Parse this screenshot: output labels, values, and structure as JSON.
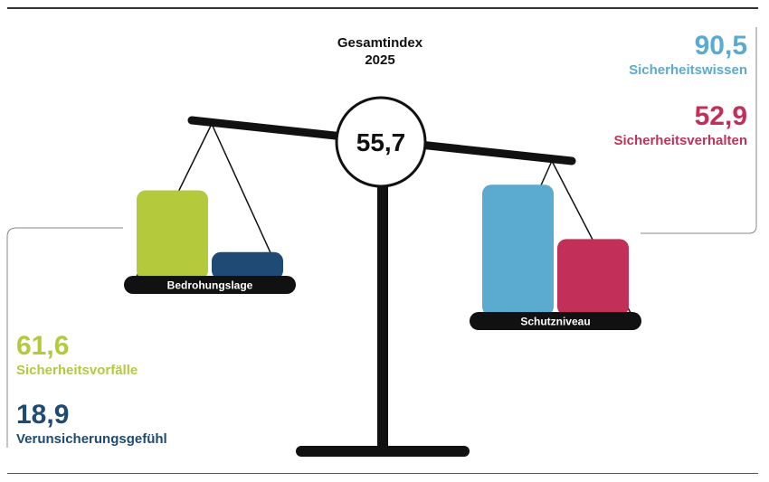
{
  "title": {
    "line1": "Gesamtindex",
    "line2": "2025"
  },
  "colors": {
    "green": "#b5c93d",
    "navy": "#1e4a73",
    "blue": "#5aabcf",
    "crimson": "#c2305a",
    "black": "#111111"
  },
  "chart_data": {
    "type": "bar",
    "center_value": "55,7",
    "groups": [
      {
        "name": "Bedrohungslage",
        "series": [
          {
            "name": "Sicherheitsvorfälle",
            "value": 61.6,
            "display": "61,6",
            "color": "#b5c93d"
          },
          {
            "name": "Verunsicherungsgefühl",
            "value": 18.9,
            "display": "18,9",
            "color": "#1e4a73"
          }
        ]
      },
      {
        "name": "Schutzniveau",
        "series": [
          {
            "name": "Sicherheitswissen",
            "value": 90.5,
            "display": "90,5",
            "color": "#5aabcf"
          },
          {
            "name": "Sicherheitsverhalten",
            "value": 52.9,
            "display": "52,9",
            "color": "#c2305a"
          }
        ]
      }
    ]
  }
}
